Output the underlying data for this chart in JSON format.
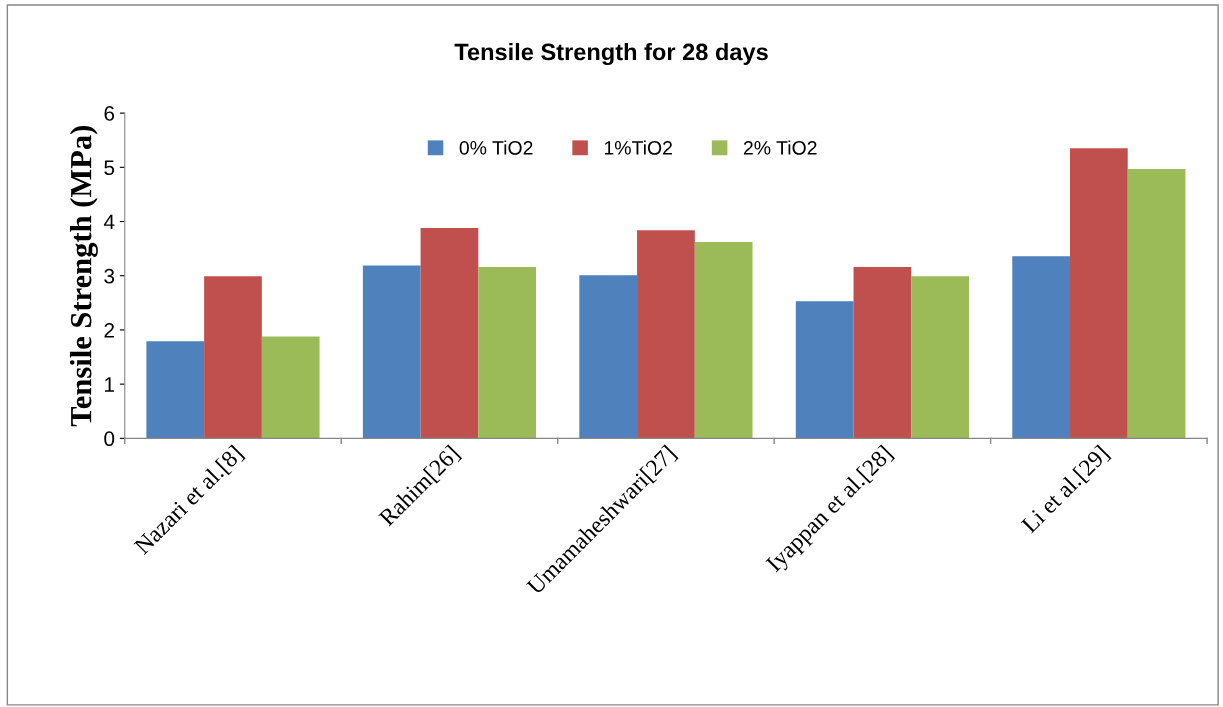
{
  "chart_data": {
    "type": "bar",
    "title": "Tensile Strength for 28 days",
    "ylabel": "Tensile Strength (MPa)",
    "categories": [
      "Nazari et al.[8]",
      "Rahim[26]",
      "Umamaheshwari[27]",
      "Iyappan et al.[28]",
      "Li et al.[29]"
    ],
    "series": [
      {
        "name": "0% TiO2",
        "color": "#4f81bd",
        "values": [
          1.79,
          3.19,
          3.01,
          2.53,
          3.36
        ]
      },
      {
        "name": "1%TiO2",
        "color": "#c0504d",
        "values": [
          2.99,
          3.88,
          3.84,
          3.16,
          5.35
        ]
      },
      {
        "name": "2% TiO2",
        "color": "#9bbb59",
        "values": [
          1.88,
          3.16,
          3.62,
          2.99,
          4.97
        ]
      }
    ],
    "ylim": [
      0,
      6
    ],
    "yticks": [
      0,
      1,
      2,
      3,
      4,
      5,
      6
    ],
    "grid": false,
    "legend": "top"
  }
}
